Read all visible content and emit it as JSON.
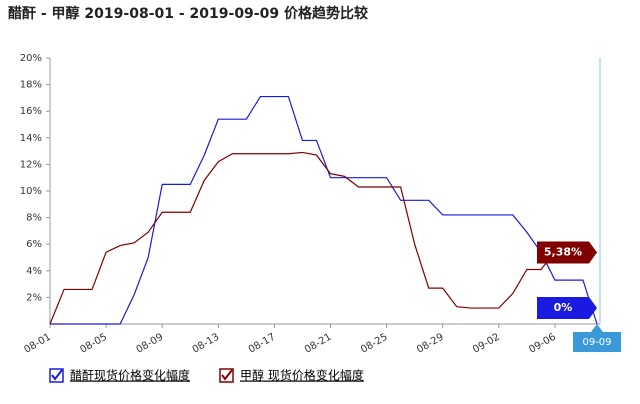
{
  "chart_data": {
    "type": "line",
    "title": "醋酐 - 甲醇 2019-08-01 - 2019-09-09 价格趋势比较",
    "x": [
      "08-01",
      null,
      null,
      null,
      "08-05",
      null,
      null,
      null,
      "08-09",
      null,
      null,
      null,
      "08-13",
      null,
      null,
      null,
      "08-17",
      null,
      null,
      null,
      "08-21",
      null,
      null,
      null,
      "08-25",
      null,
      null,
      null,
      "08-29",
      null,
      null,
      null,
      "09-02",
      null,
      null,
      null,
      "09-06",
      null,
      null,
      "09-09"
    ],
    "ylim": [
      0,
      20
    ],
    "yticks": [
      {
        "value": 2,
        "label": "2%"
      },
      {
        "value": 4,
        "label": "4%"
      },
      {
        "value": 6,
        "label": "6%"
      },
      {
        "value": 8,
        "label": "8%"
      },
      {
        "value": 10,
        "label": "10%"
      },
      {
        "value": 12,
        "label": "12%"
      },
      {
        "value": 14,
        "label": "14%"
      },
      {
        "value": 16,
        "label": "16%"
      },
      {
        "value": 18,
        "label": "18%"
      },
      {
        "value": 20,
        "label": "20%"
      }
    ],
    "grid": false,
    "series": [
      {
        "name": "醋酐现货价格变化幅度",
        "color": "#1a1ae0",
        "end_label": "0%",
        "values": [
          0,
          0,
          0,
          0,
          0,
          0,
          2.2,
          5,
          10.5,
          10.5,
          10.5,
          12.7,
          15.4,
          15.4,
          15.4,
          17.1,
          17.1,
          17.1,
          13.8,
          13.8,
          11,
          11,
          11,
          11,
          11,
          9.3,
          9.3,
          9.3,
          8.2,
          8.2,
          8.2,
          8.2,
          8.2,
          8.2,
          6.9,
          5.4,
          3.3,
          3.3,
          3.3,
          0
        ]
      },
      {
        "name": "甲醇 现货价格变化幅度",
        "color": "#800000",
        "end_label": "5,38%",
        "values": [
          0,
          2.6,
          2.6,
          2.6,
          5.4,
          5.9,
          6.1,
          6.9,
          8.4,
          8.4,
          8.4,
          10.8,
          12.2,
          12.8,
          12.8,
          12.8,
          12.8,
          12.8,
          12.9,
          12.7,
          11.3,
          11.1,
          10.3,
          10.3,
          10.3,
          10.3,
          6,
          2.7,
          2.7,
          1.3,
          1.2,
          1.2,
          1.2,
          2.3,
          4.1,
          4.1,
          5.38,
          5.38,
          5.38,
          5.38
        ]
      }
    ]
  }
}
